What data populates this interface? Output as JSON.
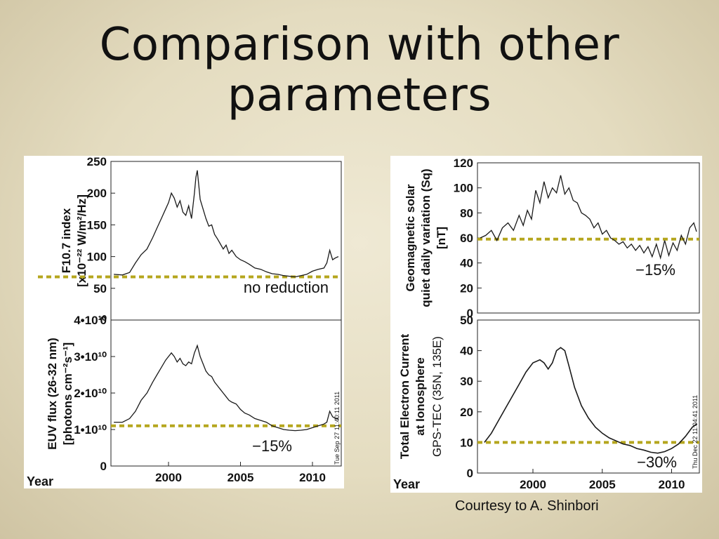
{
  "slide": {
    "title_line1": "Comparison with other",
    "title_line2": "parameters",
    "credit": "Courtesy to A. Shinbori"
  },
  "colors": {
    "reference_line": "#b5a61e",
    "series": "#1a1a1a",
    "background": "#e8e1c8"
  },
  "chart_data": [
    {
      "type": "line",
      "ylabel_lines": [
        "F10.7 index",
        "[x10⁻²² W/m²/Hz]"
      ],
      "xlim": [
        1996,
        2012
      ],
      "ylim": [
        0,
        250
      ],
      "yticks": [
        "0",
        "50",
        "100",
        "150",
        "200",
        "250"
      ],
      "reference_y": 68,
      "annotation": "no reduction",
      "x": [
        1996.2,
        1996.8,
        1997.3,
        1997.7,
        1998.1,
        1998.5,
        1998.9,
        1999.2,
        1999.5,
        1999.8,
        2000.0,
        2000.2,
        2000.4,
        2000.6,
        2000.8,
        2001.0,
        2001.2,
        2001.4,
        2001.6,
        2001.8,
        2001.9,
        2002.0,
        2002.2,
        2002.4,
        2002.6,
        2002.8,
        2003.0,
        2003.2,
        2003.4,
        2003.6,
        2003.8,
        2004.0,
        2004.2,
        2004.4,
        2004.7,
        2005.0,
        2005.3,
        2005.6,
        2006.0,
        2006.4,
        2006.8,
        2007.2,
        2007.6,
        2008.0,
        2008.4,
        2008.8,
        2009.2,
        2009.6,
        2010.0,
        2010.4,
        2010.8,
        2011.0,
        2011.2,
        2011.4,
        2011.6,
        2011.8
      ],
      "y": [
        72,
        71,
        75,
        90,
        103,
        112,
        130,
        145,
        160,
        175,
        185,
        200,
        192,
        178,
        188,
        170,
        165,
        180,
        160,
        200,
        225,
        236,
        190,
        175,
        160,
        148,
        150,
        135,
        128,
        120,
        112,
        118,
        105,
        110,
        100,
        95,
        92,
        88,
        82,
        80,
        76,
        73,
        72,
        70,
        69,
        68,
        70,
        72,
        77,
        80,
        82,
        90,
        110,
        95,
        98,
        100
      ]
    },
    {
      "type": "line",
      "ylabel_lines": [
        "EUV flux (26-32 nm)",
        "[photons cm⁻²s⁻¹]"
      ],
      "xlabel": "Year",
      "xlim": [
        1996,
        2012
      ],
      "xticks": [
        "2000",
        "2005",
        "2010"
      ],
      "ylim": [
        0,
        40000000000.0
      ],
      "yticks": [
        "0",
        "1•10¹⁰",
        "2•10¹⁰",
        "3•10¹⁰",
        "4•10¹⁰"
      ],
      "reference_y": 11000000000.0,
      "annotation": "−15%",
      "stamp": "Tue Sep 27 11:40:11 2011",
      "x": [
        1996.2,
        1996.8,
        1997.3,
        1997.7,
        1998.1,
        1998.5,
        1998.9,
        1999.2,
        1999.5,
        1999.8,
        2000.0,
        2000.2,
        2000.4,
        2000.6,
        2000.8,
        2001.0,
        2001.2,
        2001.4,
        2001.6,
        2001.8,
        2001.9,
        2002.0,
        2002.2,
        2002.4,
        2002.6,
        2002.8,
        2003.0,
        2003.2,
        2003.4,
        2003.6,
        2003.8,
        2004.0,
        2004.2,
        2004.4,
        2004.7,
        2005.0,
        2005.3,
        2005.6,
        2006.0,
        2006.4,
        2006.8,
        2007.2,
        2007.6,
        2008.0,
        2008.4,
        2008.8,
        2009.2,
        2009.6,
        2010.0,
        2010.4,
        2010.8,
        2011.0,
        2011.2,
        2011.4,
        2011.6,
        2011.8
      ],
      "y": [
        12000000000.0,
        12000000000.0,
        13000000000.0,
        15000000000.0,
        18000000000.0,
        20000000000.0,
        23000000000.0,
        25000000000.0,
        27000000000.0,
        29000000000.0,
        30000000000.0,
        31000000000.0,
        30000000000.0,
        28500000000.0,
        29500000000.0,
        28000000000.0,
        27500000000.0,
        28500000000.0,
        28000000000.0,
        31000000000.0,
        32000000000.0,
        33000000000.0,
        30000000000.0,
        28000000000.0,
        26000000000.0,
        25000000000.0,
        24500000000.0,
        23000000000.0,
        22000000000.0,
        21000000000.0,
        20000000000.0,
        19000000000.0,
        18000000000.0,
        17500000000.0,
        17000000000.0,
        15500000000.0,
        14500000000.0,
        14000000000.0,
        13000000000.0,
        12500000000.0,
        12000000000.0,
        11000000000.0,
        10500000000.0,
        10000000000.0,
        9800000000.0,
        9700000000.0,
        9800000000.0,
        10000000000.0,
        10500000000.0,
        11000000000.0,
        11500000000.0,
        12000000000.0,
        15000000000.0,
        13500000000.0,
        13000000000.0,
        13000000000.0
      ]
    },
    {
      "type": "line",
      "ylabel_lines": [
        "Geomagnetic solar",
        "quiet daily variation (Sq)",
        "[nT]"
      ],
      "xlim": [
        1996,
        2012
      ],
      "ylim": [
        0,
        120
      ],
      "yticks": [
        "0",
        "20",
        "40",
        "60",
        "80",
        "100",
        "120"
      ],
      "reference_y": 59,
      "annotation": "−15%",
      "x": [
        1996.2,
        1996.6,
        1997.0,
        1997.4,
        1997.8,
        1998.2,
        1998.6,
        1999.0,
        1999.3,
        1999.6,
        1999.9,
        2000.2,
        2000.5,
        2000.8,
        2001.1,
        2001.4,
        2001.7,
        2002.0,
        2002.3,
        2002.6,
        2002.9,
        2003.2,
        2003.5,
        2003.8,
        2004.1,
        2004.4,
        2004.7,
        2005.0,
        2005.3,
        2005.6,
        2005.9,
        2006.2,
        2006.5,
        2006.8,
        2007.1,
        2007.4,
        2007.7,
        2008.0,
        2008.3,
        2008.6,
        2008.9,
        2009.2,
        2009.5,
        2009.8,
        2010.1,
        2010.4,
        2010.7,
        2011.0,
        2011.3,
        2011.6,
        2011.8
      ],
      "y": [
        60,
        62,
        66,
        58,
        68,
        72,
        66,
        78,
        70,
        82,
        75,
        98,
        88,
        105,
        92,
        100,
        96,
        110,
        95,
        100,
        90,
        88,
        80,
        78,
        75,
        68,
        72,
        63,
        66,
        60,
        58,
        55,
        57,
        52,
        55,
        50,
        54,
        48,
        53,
        45,
        55,
        44,
        58,
        46,
        56,
        50,
        62,
        55,
        68,
        72,
        65
      ]
    },
    {
      "type": "line",
      "ylabel_lines": [
        "Total Electron Current",
        "at Ionosphere",
        "GPS-TEC (35N, 135E)"
      ],
      "xlabel": "Year",
      "xlim": [
        1996,
        2012
      ],
      "xticks": [
        "2000",
        "2005",
        "2010"
      ],
      "ylim": [
        0,
        50
      ],
      "yticks": [
        "0",
        "10",
        "20",
        "30",
        "40",
        "50"
      ],
      "reference_y": 10,
      "annotation": "−30%",
      "stamp": "Thu Dec 22 11:04:41 2011",
      "x": [
        1996.5,
        1997.0,
        1997.5,
        1998.0,
        1998.5,
        1999.0,
        1999.5,
        2000.0,
        2000.5,
        2000.8,
        2001.1,
        2001.4,
        2001.7,
        2002.0,
        2002.3,
        2002.6,
        2003.0,
        2003.5,
        2004.0,
        2004.5,
        2005.0,
        2005.5,
        2006.0,
        2006.5,
        2007.0,
        2007.5,
        2008.0,
        2008.5,
        2009.0,
        2009.5,
        2010.0,
        2010.5,
        2011.0,
        2011.5,
        2011.8
      ],
      "y": [
        10,
        13,
        17,
        21,
        25,
        29,
        33,
        36,
        37,
        36,
        34,
        36,
        40,
        41,
        40,
        35,
        28,
        22,
        18,
        15,
        13,
        11.5,
        10.5,
        9.5,
        9,
        8,
        7.5,
        6.8,
        6.5,
        7,
        8,
        9.5,
        12,
        15,
        16
      ]
    }
  ]
}
